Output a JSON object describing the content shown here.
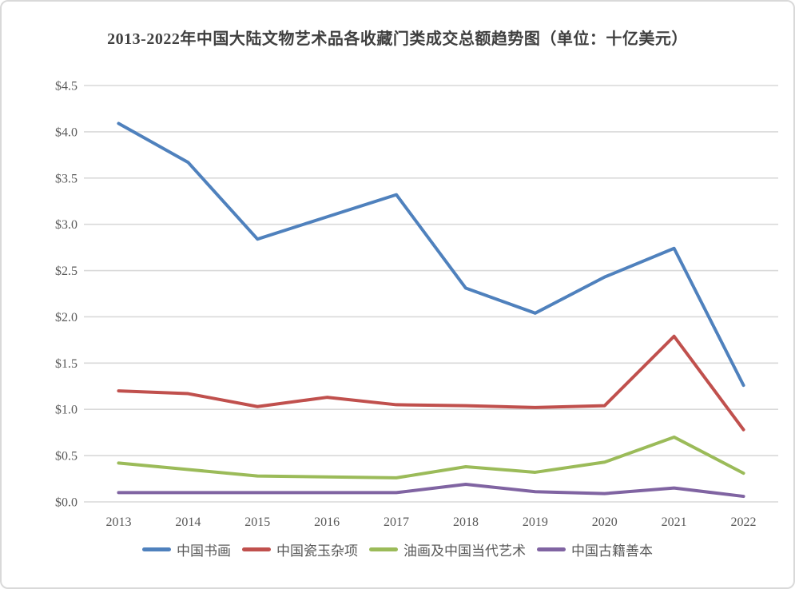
{
  "chart_data": {
    "type": "line",
    "title": "2013-2022年中国大陆文物艺术品各收藏门类成交总额趋势图（单位：十亿美元）",
    "categories": [
      "2013",
      "2014",
      "2015",
      "2016",
      "2017",
      "2018",
      "2019",
      "2020",
      "2021",
      "2022"
    ],
    "series": [
      {
        "name": "中国书画",
        "color": "#4F81BD",
        "values": [
          4.09,
          3.67,
          2.84,
          3.08,
          3.32,
          2.31,
          2.04,
          2.43,
          2.74,
          1.26
        ]
      },
      {
        "name": "中国瓷玉杂项",
        "color": "#C0504D",
        "values": [
          1.2,
          1.17,
          1.03,
          1.13,
          1.05,
          1.04,
          1.02,
          1.04,
          1.79,
          0.78
        ]
      },
      {
        "name": "油画及中国当代艺术",
        "color": "#9BBB59",
        "values": [
          0.42,
          0.35,
          0.28,
          0.27,
          0.26,
          0.38,
          0.32,
          0.43,
          0.7,
          0.31
        ]
      },
      {
        "name": "中国古籍善本",
        "color": "#8064A2",
        "values": [
          0.1,
          0.1,
          0.1,
          0.1,
          0.1,
          0.19,
          0.11,
          0.09,
          0.15,
          0.06
        ]
      }
    ],
    "y_axis": {
      "min": 0,
      "max": 4.5,
      "step": 0.5,
      "tick_labels": [
        "$0.0",
        "$0.5",
        "$1.0",
        "$1.5",
        "$2.0",
        "$2.5",
        "$3.0",
        "$3.5",
        "$4.0",
        "$4.5"
      ]
    },
    "x_axis": {
      "tick_labels": [
        "2013",
        "2014",
        "2015",
        "2016",
        "2017",
        "2018",
        "2019",
        "2020",
        "2021",
        "2022"
      ]
    },
    "grid": true,
    "legend_position": "bottom",
    "colors": {
      "gridline": "#D9D9D9",
      "axis_text": "#595959",
      "title_text": "#3F3F3F",
      "background": "#FFFFFF",
      "border": "#D9D9D9"
    }
  }
}
